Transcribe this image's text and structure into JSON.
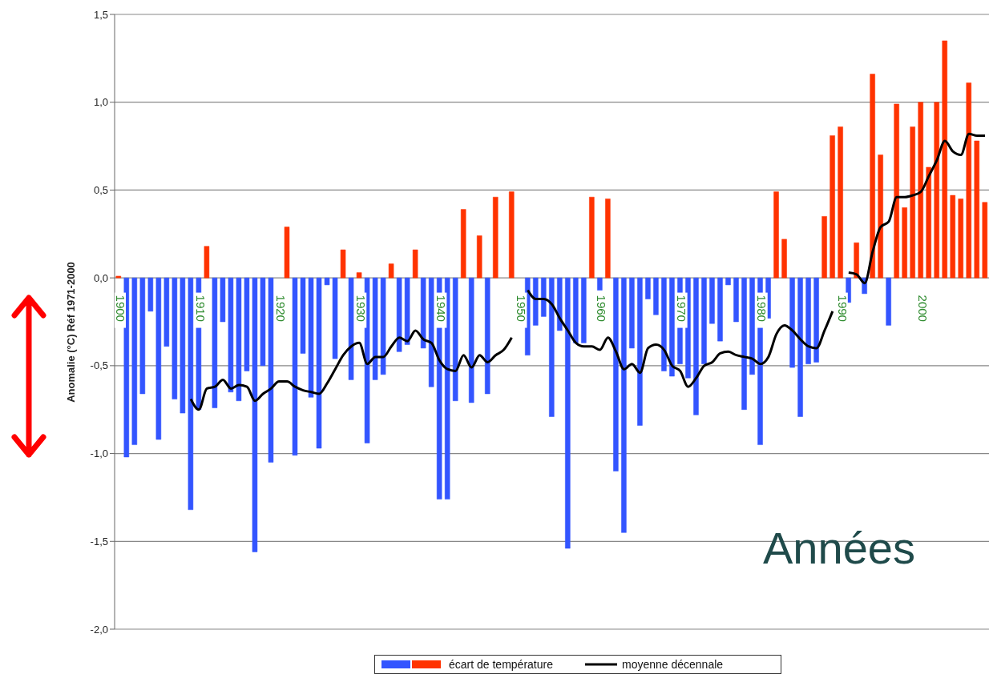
{
  "chart_data": {
    "type": "bar",
    "ylabel": "Anomalie (°C) Réf 1971-2000",
    "annotations": [
      "Années"
    ],
    "categories": [
      "1900",
      null,
      null,
      null,
      null,
      null,
      null,
      null,
      null,
      null,
      "1910",
      null,
      null,
      null,
      null,
      null,
      null,
      null,
      null,
      null,
      "1920",
      null,
      null,
      null,
      null,
      null,
      null,
      null,
      null,
      null,
      "1930",
      null,
      null,
      null,
      null,
      null,
      null,
      null,
      null,
      null,
      "1940",
      null,
      null,
      null,
      null,
      null,
      null,
      null,
      null,
      null,
      "1950",
      null,
      null,
      null,
      null,
      null,
      null,
      null,
      null,
      null,
      "1960",
      null,
      null,
      null,
      null,
      null,
      null,
      null,
      null,
      null,
      "1970",
      null,
      null,
      null,
      null,
      null,
      null,
      null,
      null,
      null,
      "1980",
      null,
      null,
      null,
      null,
      null,
      null,
      null,
      null,
      null,
      "1990",
      null,
      null,
      null,
      null,
      null,
      null,
      null,
      null,
      null,
      "2000",
      null,
      null,
      null,
      null,
      null,
      null,
      null,
      null
    ],
    "series": [
      {
        "name": "écart de température",
        "values": [
          0.01,
          -1.02,
          -0.95,
          -0.66,
          -0.19,
          -0.92,
          -0.39,
          -0.69,
          -0.77,
          -1.32,
          -0.75,
          0.18,
          -0.74,
          -0.25,
          -0.65,
          -0.7,
          -0.53,
          -1.56,
          -0.5,
          -1.05,
          null,
          0.29,
          -1.01,
          -0.43,
          -0.68,
          -0.97,
          -0.04,
          -0.46,
          0.16,
          -0.58,
          0.03,
          -0.94,
          -0.58,
          -0.55,
          0.08,
          -0.42,
          -0.38,
          0.16,
          -0.4,
          -0.62,
          -1.26,
          -1.26,
          -0.7,
          0.39,
          -0.71,
          0.24,
          -0.66,
          0.46,
          null,
          0.49,
          null,
          -0.44,
          -0.27,
          -0.22,
          -0.79,
          -0.3,
          -1.54,
          -0.37,
          -0.37,
          0.46,
          -0.07,
          0.45,
          -1.1,
          -1.45,
          -0.4,
          -0.84,
          -0.12,
          -0.21,
          -0.53,
          -0.56,
          -0.49,
          -0.57,
          -0.78,
          -0.49,
          -0.26,
          -0.36,
          -0.04,
          -0.25,
          -0.75,
          -0.55,
          -0.95,
          -0.23,
          0.49,
          0.22,
          -0.51,
          -0.79,
          -0.49,
          -0.48,
          0.35,
          0.81,
          0.86,
          -0.14,
          0.2,
          -0.09,
          1.16,
          0.7,
          -0.27,
          0.99,
          0.4,
          0.86,
          1.0,
          0.63,
          1.0,
          1.35,
          0.47,
          0.45,
          1.11,
          0.78,
          0.43
        ],
        "colors": [
          "#ff3300",
          "#3355ff",
          "#3355ff",
          "#3355ff",
          "#3355ff",
          "#3355ff",
          "#3355ff",
          "#3355ff",
          "#3355ff",
          "#3355ff",
          "#3355ff",
          "#ff3300",
          "#3355ff",
          "#3355ff",
          "#3355ff",
          "#3355ff",
          "#3355ff",
          "#3355ff",
          "#3355ff",
          "#3355ff",
          "#3355ff",
          "#ff3300",
          "#3355ff",
          "#3355ff",
          "#3355ff",
          "#3355ff",
          "#3355ff",
          "#3355ff",
          "#ff3300",
          "#3355ff",
          "#ff3300",
          "#3355ff",
          "#3355ff",
          "#3355ff",
          "#ff3300",
          "#3355ff",
          "#3355ff",
          "#ff3300",
          "#3355ff",
          "#3355ff",
          "#3355ff",
          "#3355ff",
          "#3355ff",
          "#ff3300",
          "#3355ff",
          "#ff3300",
          "#3355ff",
          "#ff3300",
          "#3355ff",
          "#ff3300",
          "#3355ff",
          "#3355ff",
          "#3355ff",
          "#3355ff",
          "#3355ff",
          "#3355ff",
          "#3355ff",
          "#3355ff",
          "#3355ff",
          "#ff3300",
          "#3355ff",
          "#ff3300",
          "#3355ff",
          "#3355ff",
          "#3355ff",
          "#3355ff",
          "#3355ff",
          "#3355ff",
          "#3355ff",
          "#3355ff",
          "#3355ff",
          "#3355ff",
          "#3355ff",
          "#3355ff",
          "#3355ff",
          "#3355ff",
          "#3355ff",
          "#3355ff",
          "#3355ff",
          "#3355ff",
          "#3355ff",
          "#3355ff",
          "#ff3300",
          "#ff3300",
          "#3355ff",
          "#3355ff",
          "#3355ff",
          "#3355ff",
          "#ff3300",
          "#ff3300",
          "#ff3300",
          "#3355ff",
          "#ff3300",
          "#3355ff",
          "#ff3300",
          "#ff3300",
          "#3355ff",
          "#ff3300",
          "#ff3300",
          "#ff3300",
          "#ff3300",
          "#ff3300",
          "#ff3300",
          "#ff3300",
          "#ff3300",
          "#ff3300",
          "#ff3300",
          "#ff3300",
          "#ff3300"
        ]
      },
      {
        "name": "moyenne décennale",
        "type": "line",
        "color": "#000000",
        "values": [
          null,
          null,
          null,
          null,
          null,
          null,
          null,
          null,
          null,
          -0.69,
          -0.75,
          -0.63,
          -0.62,
          -0.58,
          -0.63,
          -0.61,
          -0.62,
          -0.7,
          -0.66,
          -0.63,
          -0.59,
          -0.59,
          -0.62,
          -0.64,
          -0.65,
          -0.66,
          -0.6,
          -0.52,
          -0.44,
          -0.39,
          -0.37,
          -0.49,
          -0.45,
          -0.45,
          -0.39,
          -0.34,
          -0.36,
          -0.3,
          -0.35,
          -0.37,
          -0.47,
          -0.52,
          -0.53,
          -0.44,
          -0.51,
          -0.44,
          -0.48,
          -0.44,
          -0.41,
          -0.34,
          null,
          -0.07,
          -0.12,
          -0.12,
          -0.15,
          -0.23,
          -0.3,
          -0.37,
          -0.39,
          -0.39,
          -0.41,
          -0.34,
          -0.42,
          -0.52,
          -0.49,
          -0.54,
          -0.4,
          -0.38,
          -0.41,
          -0.5,
          -0.53,
          -0.62,
          -0.57,
          -0.5,
          -0.48,
          -0.43,
          -0.42,
          -0.44,
          -0.45,
          -0.46,
          -0.49,
          -0.45,
          -0.32,
          -0.27,
          -0.3,
          -0.35,
          -0.39,
          -0.4,
          -0.3,
          -0.19,
          null,
          0.03,
          0.02,
          -0.03,
          0.15,
          0.29,
          0.32,
          0.46,
          0.46,
          0.47,
          0.49,
          0.58,
          0.67,
          0.78,
          0.72,
          0.7,
          0.82,
          0.81,
          0.81
        ]
      }
    ],
    "ylim": [
      -2.0,
      1.5
    ],
    "yticks": [
      {
        "value": -2.0,
        "label": "-2,0"
      },
      {
        "value": -1.5,
        "label": "-1,5"
      },
      {
        "value": -1.0,
        "label": "-1,0"
      },
      {
        "value": -0.5,
        "label": "-0,5"
      },
      {
        "value": 0,
        "label": "0,0"
      },
      {
        "value": 0.5,
        "label": "0,5"
      },
      {
        "value": 1.0,
        "label": "1,0"
      },
      {
        "value": 1.5,
        "label": "1,5"
      }
    ],
    "grid": "y",
    "legend": "bottom"
  }
}
